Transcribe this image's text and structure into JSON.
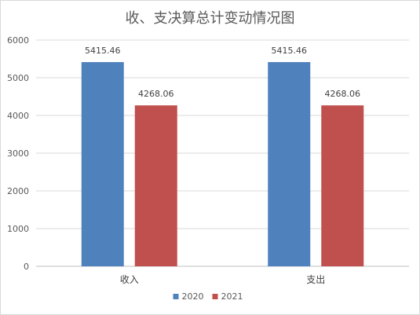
{
  "chart_data": {
    "type": "bar",
    "title": "收、支决算总计变动情况图",
    "categories": [
      "收入",
      "支出"
    ],
    "series": [
      {
        "name": "2020",
        "color": "#4f81bd",
        "values": [
          5415.46,
          5415.46
        ],
        "labels": [
          "5415.46",
          "5415.46"
        ]
      },
      {
        "name": "2021",
        "color": "#c0504d",
        "values": [
          4268.06,
          4268.06
        ],
        "labels": [
          "4268.06",
          "4268.06"
        ]
      }
    ],
    "ylim": [
      0,
      6000
    ],
    "yticks": [
      0,
      1000,
      2000,
      3000,
      4000,
      5000,
      6000
    ],
    "grid": true,
    "legend": "bottom"
  }
}
